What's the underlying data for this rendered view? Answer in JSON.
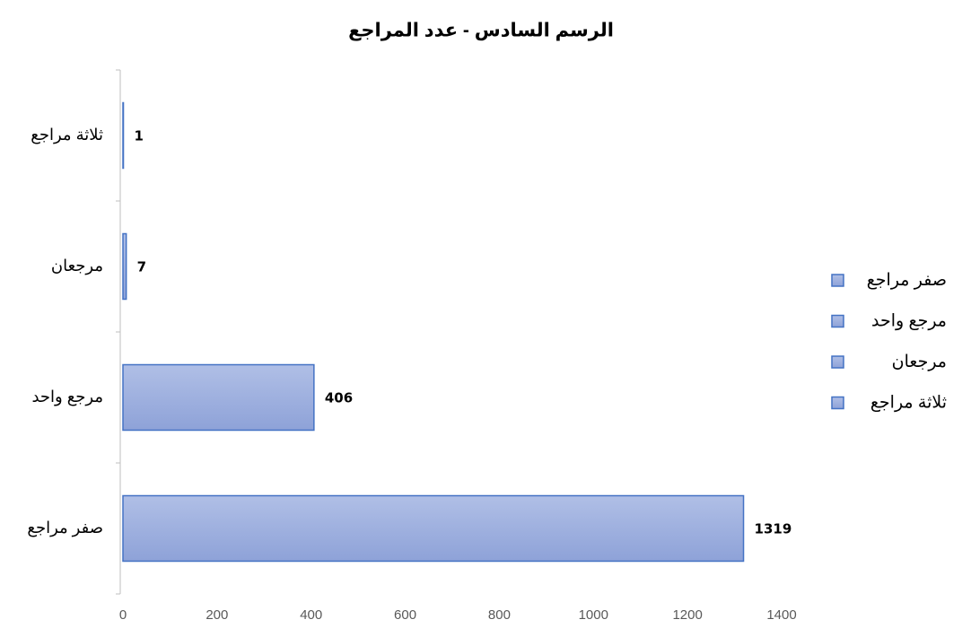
{
  "chart_data": {
    "type": "bar",
    "orientation": "horizontal",
    "title": "الرسم السادس - عدد المراجع",
    "categories": [
      "صفر مراجع",
      "مرجع واحد",
      "مرجعان",
      "ثلاثة مراجع"
    ],
    "values": [
      1319,
      406,
      7,
      1
    ],
    "color": "#4472c4",
    "xlim": [
      0,
      1400
    ],
    "xticks": [
      0,
      200,
      400,
      600,
      800,
      1000,
      1200,
      1400
    ],
    "grid": false,
    "legend": "right"
  }
}
